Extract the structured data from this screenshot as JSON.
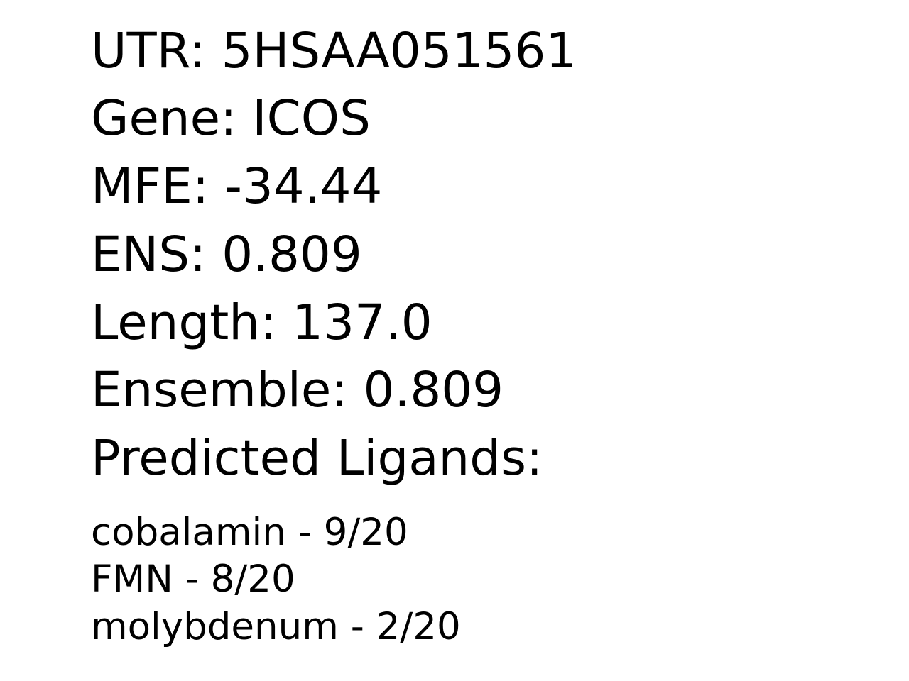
{
  "record": {
    "utr": "UTR: 5HSAA051561",
    "gene": "Gene: ICOS",
    "mfe": "MFE: -34.44",
    "ens": "ENS: 0.809",
    "length": "Length: 137.0",
    "ensemble": "Ensemble: 0.809",
    "ligands_heading": "Predicted Ligands:"
  },
  "ligands": [
    "cobalamin - 9/20",
    "FMN - 8/20",
    "molybdenum - 2/20"
  ],
  "colors": {
    "text": "#000000",
    "background": "#ffffff"
  }
}
